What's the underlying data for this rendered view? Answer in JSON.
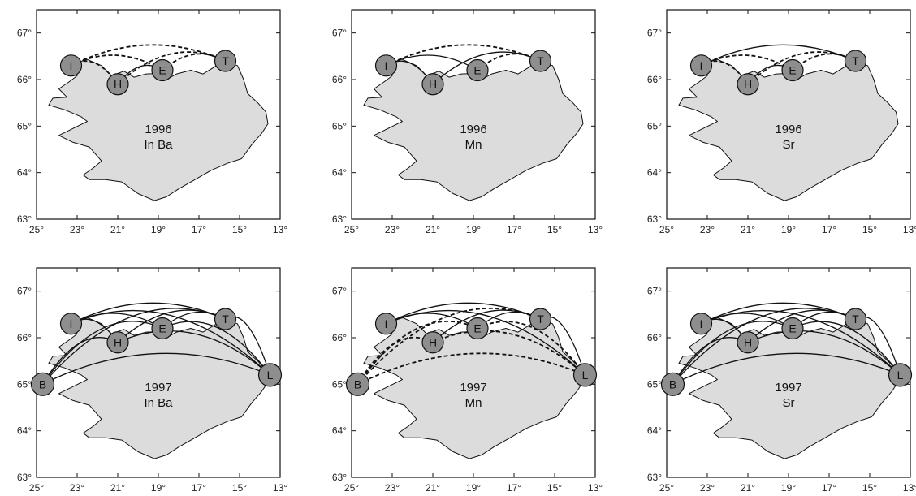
{
  "figure": {
    "x_ticks": [
      "25°",
      "23°",
      "21°",
      "19°",
      "17°",
      "15°",
      "13°"
    ],
    "y_ticks": [
      "67°",
      "66°",
      "65°",
      "64°",
      "63°"
    ],
    "colors": {
      "land": "#dcdcdc",
      "marker": "#8e8e8e",
      "frame": "#111111"
    },
    "sites": {
      "I": {
        "label": "I",
        "lon": 23.3,
        "lat": 66.3
      },
      "H": {
        "label": "H",
        "lon": 21.0,
        "lat": 65.9
      },
      "E": {
        "label": "E",
        "lon": 18.8,
        "lat": 66.2
      },
      "T": {
        "label": "T",
        "lon": 15.7,
        "lat": 66.4
      },
      "B": {
        "label": "B",
        "lon": 24.7,
        "lat": 65.0
      },
      "L": {
        "label": "L",
        "lon": 13.5,
        "lat": 65.2
      }
    },
    "panels": [
      {
        "year": "1996",
        "element": "In Ba",
        "sites": [
          "I",
          "H",
          "E",
          "T"
        ],
        "links": [
          {
            "from": "I",
            "to": "T",
            "style": "dashed"
          },
          {
            "from": "I",
            "to": "E",
            "style": "dashed"
          },
          {
            "from": "H",
            "to": "T",
            "style": "dashed"
          },
          {
            "from": "E",
            "to": "T",
            "style": "dashed"
          },
          {
            "from": "I",
            "to": "H",
            "style": "dashed"
          },
          {
            "from": "H",
            "to": "E",
            "style": "solid"
          }
        ]
      },
      {
        "year": "1996",
        "element": "Mn",
        "sites": [
          "I",
          "H",
          "E",
          "T"
        ],
        "links": [
          {
            "from": "I",
            "to": "T",
            "style": "dashed"
          },
          {
            "from": "I",
            "to": "E",
            "style": "solid"
          },
          {
            "from": "H",
            "to": "T",
            "style": "solid"
          },
          {
            "from": "E",
            "to": "T",
            "style": "dashed"
          },
          {
            "from": "I",
            "to": "H",
            "style": "solid"
          }
        ]
      },
      {
        "year": "1996",
        "element": "Sr",
        "sites": [
          "I",
          "H",
          "E",
          "T"
        ],
        "links": [
          {
            "from": "I",
            "to": "T",
            "style": "solid"
          },
          {
            "from": "I",
            "to": "E",
            "style": "dashed"
          },
          {
            "from": "H",
            "to": "T",
            "style": "dashed"
          },
          {
            "from": "E",
            "to": "T",
            "style": "dashed"
          },
          {
            "from": "I",
            "to": "H",
            "style": "dashed"
          },
          {
            "from": "H",
            "to": "E",
            "style": "solid"
          }
        ]
      },
      {
        "year": "1997",
        "element": "In Ba",
        "sites": [
          "I",
          "H",
          "E",
          "T",
          "B",
          "L"
        ],
        "links": [
          {
            "from": "B",
            "to": "L",
            "style": "solid"
          },
          {
            "from": "I",
            "to": "L",
            "style": "solid"
          },
          {
            "from": "H",
            "to": "L",
            "style": "solid"
          },
          {
            "from": "E",
            "to": "L",
            "style": "solid"
          },
          {
            "from": "T",
            "to": "L",
            "style": "solid"
          },
          {
            "from": "B",
            "to": "T",
            "style": "solid"
          },
          {
            "from": "B",
            "to": "E",
            "style": "solid"
          },
          {
            "from": "B",
            "to": "H",
            "style": "solid"
          },
          {
            "from": "I",
            "to": "T",
            "style": "solid"
          },
          {
            "from": "I",
            "to": "E",
            "style": "solid"
          },
          {
            "from": "H",
            "to": "T",
            "style": "solid"
          },
          {
            "from": "E",
            "to": "T",
            "style": "solid"
          },
          {
            "from": "I",
            "to": "H",
            "style": "solid"
          }
        ]
      },
      {
        "year": "1997",
        "element": "Mn",
        "sites": [
          "I",
          "H",
          "E",
          "T",
          "B",
          "L"
        ],
        "links": [
          {
            "from": "B",
            "to": "L",
            "style": "dashed"
          },
          {
            "from": "H",
            "to": "L",
            "style": "dashed"
          },
          {
            "from": "E",
            "to": "L",
            "style": "dashed"
          },
          {
            "from": "B",
            "to": "T",
            "style": "dashed"
          },
          {
            "from": "B",
            "to": "E",
            "style": "dashed"
          },
          {
            "from": "B",
            "to": "H",
            "style": "dashed"
          },
          {
            "from": "I",
            "to": "L",
            "style": "solid"
          },
          {
            "from": "T",
            "to": "L",
            "style": "solid"
          },
          {
            "from": "I",
            "to": "T",
            "style": "solid"
          },
          {
            "from": "I",
            "to": "E",
            "style": "solid"
          },
          {
            "from": "H",
            "to": "T",
            "style": "solid"
          },
          {
            "from": "E",
            "to": "T",
            "style": "solid"
          }
        ]
      },
      {
        "year": "1997",
        "element": "Sr",
        "sites": [
          "I",
          "H",
          "E",
          "T",
          "B",
          "L"
        ],
        "links": [
          {
            "from": "B",
            "to": "L",
            "style": "solid"
          },
          {
            "from": "I",
            "to": "L",
            "style": "solid"
          },
          {
            "from": "H",
            "to": "L",
            "style": "solid"
          },
          {
            "from": "E",
            "to": "L",
            "style": "solid"
          },
          {
            "from": "T",
            "to": "L",
            "style": "solid"
          },
          {
            "from": "B",
            "to": "T",
            "style": "solid"
          },
          {
            "from": "B",
            "to": "E",
            "style": "solid"
          },
          {
            "from": "B",
            "to": "H",
            "style": "solid"
          },
          {
            "from": "I",
            "to": "T",
            "style": "solid"
          },
          {
            "from": "I",
            "to": "E",
            "style": "solid"
          },
          {
            "from": "H",
            "to": "T",
            "style": "solid"
          },
          {
            "from": "E",
            "to": "T",
            "style": "solid"
          },
          {
            "from": "I",
            "to": "H",
            "style": "solid"
          }
        ]
      }
    ]
  }
}
